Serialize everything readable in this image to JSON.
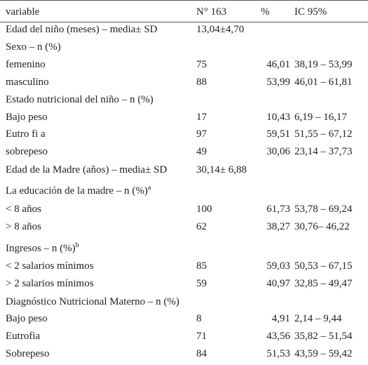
{
  "table": {
    "header": [
      "variable",
      "N° 163",
      "%",
      "IC 95%"
    ],
    "rows": [
      {
        "label": "Edad del niño (meses) – media± SD",
        "n": "13,04±4,70"
      },
      {
        "label": "Sexo – n (%)"
      },
      {
        "label": "femenino",
        "n": "75",
        "pct": "46,01",
        "ic": "38,19 – 53,99"
      },
      {
        "label": "masculino",
        "n": "88",
        "pct": "53,99",
        "ic": "46,01 – 61,81"
      },
      {
        "label": "Estado nutricional del niño – n (%)"
      },
      {
        "label": "Bajo peso",
        "n": "17",
        "pct": "10,43",
        "ic": "6,19 – 16,17"
      },
      {
        "label": "Eutro fi a",
        "n": "97",
        "pct": "59,51",
        "ic": "51,55 – 67,12"
      },
      {
        "label": "sobrepeso",
        "n": "49",
        "pct": "30,06",
        "ic": "23,14 – 37,73"
      },
      {
        "label": "Edad de la Madre (años) – media± SD",
        "n": "30,14± 6,88"
      },
      {
        "label": "La educación de la madre – n (%)",
        "sup": "a"
      },
      {
        "label": "< 8 años",
        "n": "100",
        "pct": "61,73",
        "ic": "53,78 – 69,24"
      },
      {
        "label": "> 8 años",
        "n": "62",
        "pct": "38,27",
        "ic": "30,76– 46,22"
      },
      {
        "label": "Ingresos – n (%)",
        "sup": "b"
      },
      {
        "label": "< 2 salarios mínimos",
        "n": "85",
        "pct": "59,03",
        "ic": "50,53 – 67,15"
      },
      {
        "label": "> 2 salarios mínimos",
        "n": "59",
        "pct": "40,97",
        "ic": "32,85 – 49,47"
      },
      {
        "label": "Diagnóstico Nutricional Materno – n (%)"
      },
      {
        "label": "Bajo peso",
        "n": "8",
        "pct": "4,91",
        "ic": "2,14 – 9,44"
      },
      {
        "label": "Eutrofia",
        "n": "71",
        "pct": "43,56",
        "ic": "35,82 – 51,54"
      },
      {
        "label": "Sobrepeso",
        "n": "84",
        "pct": "51,53",
        "ic": "43,59 – 59,42"
      }
    ]
  }
}
